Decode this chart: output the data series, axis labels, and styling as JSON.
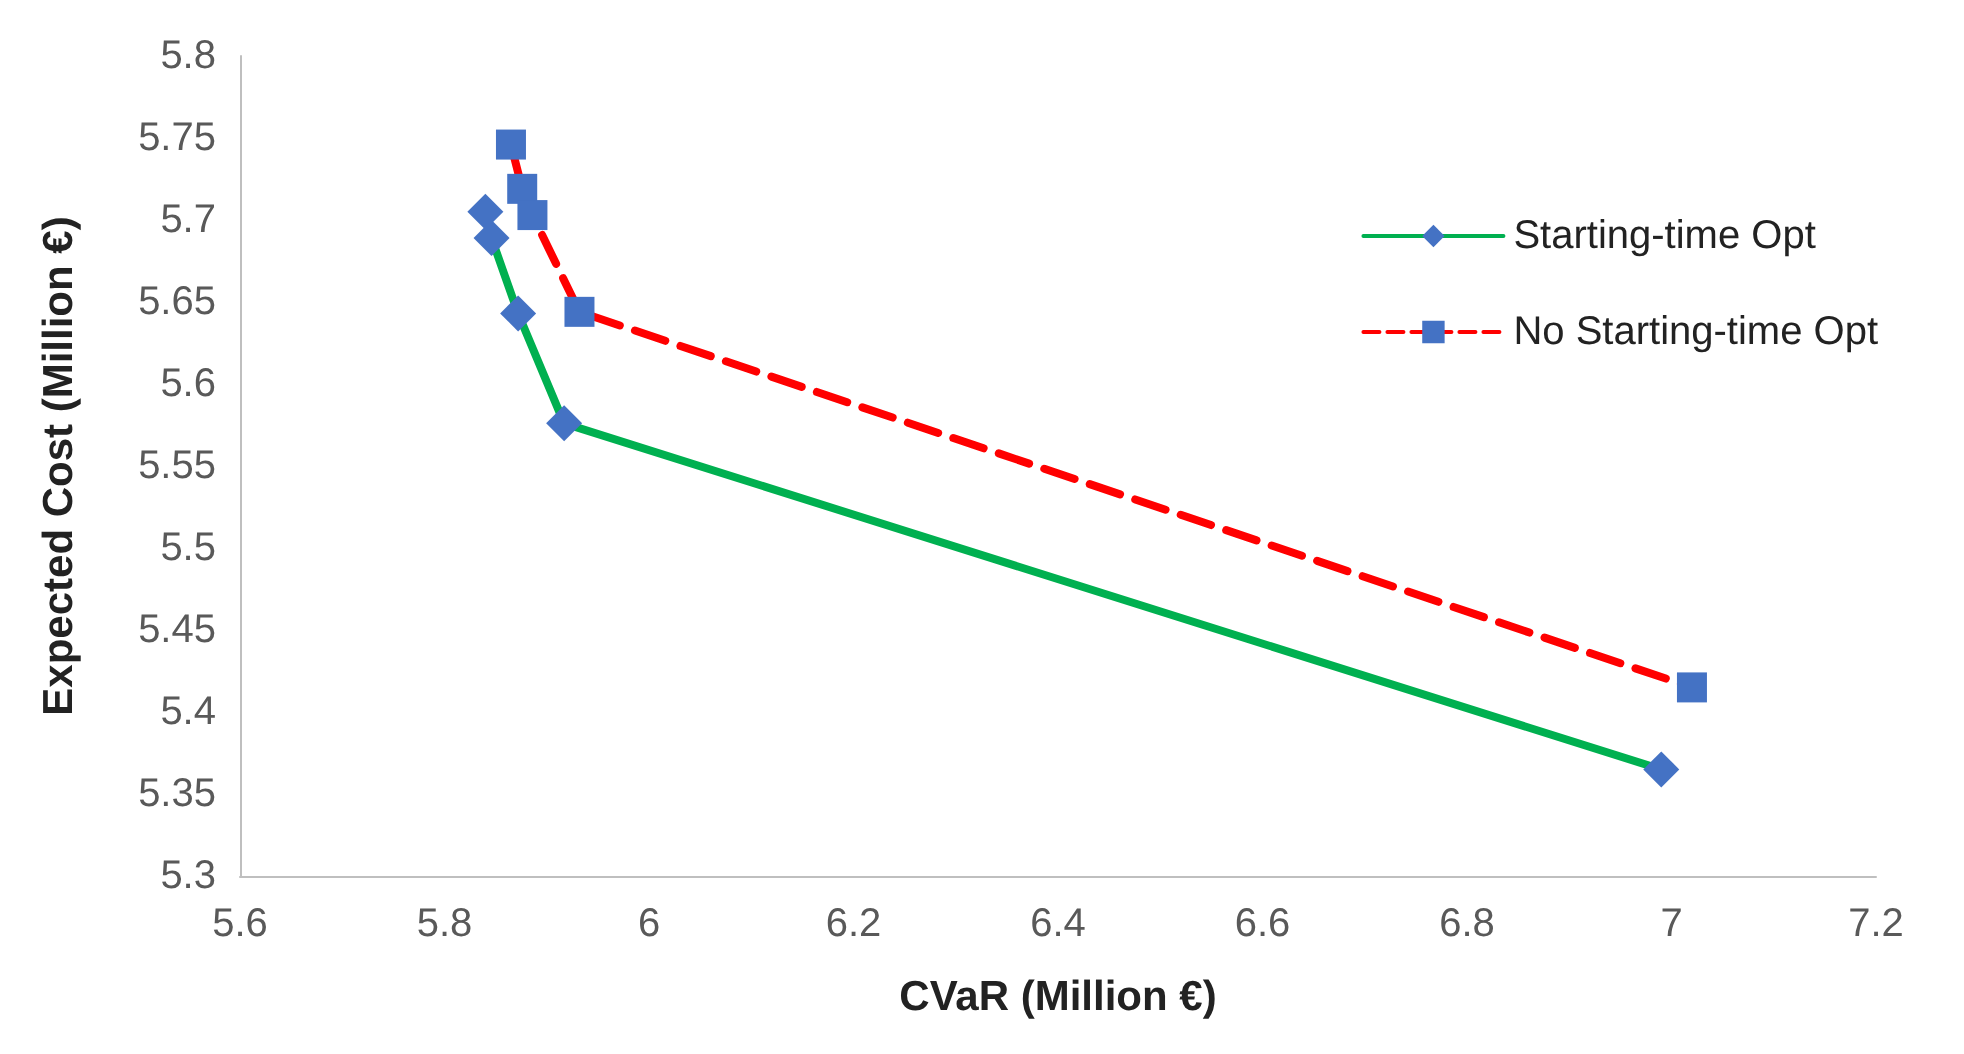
{
  "chart_data": {
    "type": "line",
    "xlabel": "CVaR (Million €)",
    "ylabel": "Expected Cost (Million €)",
    "xlim": [
      5.6,
      7.2
    ],
    "xticks": [
      5.6,
      5.8,
      6,
      6.2,
      6.4,
      6.6,
      6.8,
      7,
      7.2
    ],
    "ylim": [
      5.3,
      5.8
    ],
    "yticks": [
      5.3,
      5.35,
      5.4,
      5.45,
      5.5,
      5.55,
      5.6,
      5.65,
      5.7,
      5.75,
      5.8
    ],
    "grid": false,
    "legend": "top right",
    "series": [
      {
        "name": "Starting-time Opt",
        "color": "#00b050",
        "marker": "diamond",
        "colors": [
          "#4472c4",
          "#4472c4",
          "#4472c4",
          "#4472c4",
          "#4472c4"
        ],
        "line_style": "solid",
        "x": [
          5.84,
          5.846,
          5.872,
          5.917,
          6.99
        ],
        "values": [
          5.705,
          5.689,
          5.643,
          5.576,
          5.365
        ]
      },
      {
        "name": "No Starting-time Opt",
        "color": "#ff0000",
        "marker": "square",
        "colors": [
          "#4472c4",
          "#4472c4",
          "#4472c4",
          "#4472c4",
          "#4472c4"
        ],
        "line_style": "dashed",
        "x": [
          5.865,
          5.876,
          5.886,
          5.932,
          7.02
        ],
        "values": [
          5.746,
          5.719,
          5.703,
          5.644,
          5.415
        ]
      }
    ]
  }
}
